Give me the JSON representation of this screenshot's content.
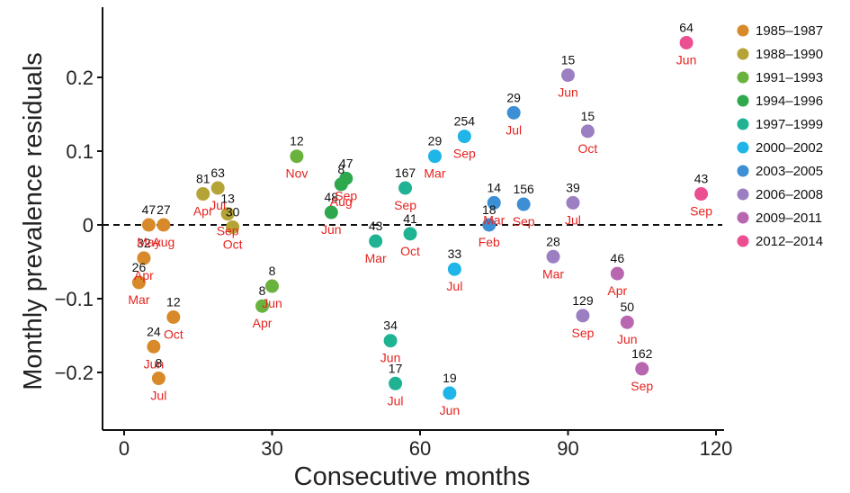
{
  "chart_data": {
    "type": "scatter",
    "xlabel": "Consecutive months",
    "ylabel": "Monthly prevalence residuals",
    "xlim": [
      -4,
      120
    ],
    "ylim": [
      -0.26,
      0.27
    ],
    "xticks": [
      0,
      30,
      60,
      90,
      120
    ],
    "yticks": [
      0.2,
      0.1,
      0,
      -0.1,
      -0.2
    ],
    "ytick_labels": [
      "0.2",
      "0.1",
      "0",
      "−0.1",
      "−0.2"
    ],
    "reference_line_y": 0,
    "legend_position": "right",
    "series": [
      {
        "name": "1985–1987",
        "color": "#d8892a",
        "points": [
          {
            "x": 3,
            "y": -0.078,
            "n": "26",
            "month": "Mar"
          },
          {
            "x": 4,
            "y": -0.045,
            "n": "32",
            "month": "Apr"
          },
          {
            "x": 5,
            "y": 0.0,
            "n": "47",
            "month": "May"
          },
          {
            "x": 6,
            "y": -0.165,
            "n": "24",
            "month": "Jun"
          },
          {
            "x": 7,
            "y": -0.208,
            "n": "8",
            "month": "Jul"
          },
          {
            "x": 8,
            "y": 0.0,
            "n": "27",
            "month": "Aug"
          },
          {
            "x": 10,
            "y": -0.125,
            "n": "12",
            "month": "Oct"
          }
        ]
      },
      {
        "name": "1988–1990",
        "color": "#b5a335",
        "points": [
          {
            "x": 16,
            "y": 0.042,
            "n": "81",
            "month": "Apr"
          },
          {
            "x": 19,
            "y": 0.05,
            "n": "63",
            "month": "Jul"
          },
          {
            "x": 21,
            "y": 0.015,
            "n": "13",
            "month": "Sep"
          },
          {
            "x": 22,
            "y": -0.003,
            "n": "30",
            "month": "Oct"
          }
        ]
      },
      {
        "name": "1991–1993",
        "color": "#6ab23e",
        "points": [
          {
            "x": 28,
            "y": -0.11,
            "n": "8",
            "month": "Apr"
          },
          {
            "x": 30,
            "y": -0.083,
            "n": "8",
            "month": "Jun"
          },
          {
            "x": 35,
            "y": 0.093,
            "n": "12",
            "month": "Nov"
          }
        ]
      },
      {
        "name": "1994–1996",
        "color": "#2ea84d",
        "points": [
          {
            "x": 42,
            "y": 0.017,
            "n": "48",
            "month": "Jun"
          },
          {
            "x": 44,
            "y": 0.055,
            "n": "8",
            "month": "Aug"
          },
          {
            "x": 45,
            "y": 0.063,
            "n": "47",
            "month": "Sep"
          }
        ]
      },
      {
        "name": "1997–1999",
        "color": "#1fb394",
        "points": [
          {
            "x": 51,
            "y": -0.022,
            "n": "43",
            "month": "Mar"
          },
          {
            "x": 54,
            "y": -0.157,
            "n": "34",
            "month": "Jun"
          },
          {
            "x": 55,
            "y": -0.215,
            "n": "17",
            "month": "Jul"
          },
          {
            "x": 57,
            "y": 0.05,
            "n": "167",
            "month": "Sep"
          },
          {
            "x": 58,
            "y": -0.012,
            "n": "41",
            "month": "Oct"
          }
        ]
      },
      {
        "name": "2000–2002",
        "color": "#1fb5e8",
        "points": [
          {
            "x": 63,
            "y": 0.093,
            "n": "29",
            "month": "Mar"
          },
          {
            "x": 66,
            "y": -0.228,
            "n": "19",
            "month": "Jun"
          },
          {
            "x": 67,
            "y": -0.06,
            "n": "33",
            "month": "Jul"
          },
          {
            "x": 69,
            "y": 0.12,
            "n": "254",
            "month": "Sep"
          }
        ]
      },
      {
        "name": "2003–2005",
        "color": "#3c8fd4",
        "points": [
          {
            "x": 74,
            "y": 0.0,
            "n": "18",
            "month": "Feb"
          },
          {
            "x": 75,
            "y": 0.03,
            "n": "14",
            "month": "Mar"
          },
          {
            "x": 79,
            "y": 0.152,
            "n": "29",
            "month": "Jul"
          },
          {
            "x": 81,
            "y": 0.028,
            "n": "156",
            "month": "Sep"
          }
        ]
      },
      {
        "name": "2006–2008",
        "color": "#9b7fc2",
        "points": [
          {
            "x": 87,
            "y": -0.043,
            "n": "28",
            "month": "Mar"
          },
          {
            "x": 90,
            "y": 0.203,
            "n": "15",
            "month": "Jun"
          },
          {
            "x": 91,
            "y": 0.03,
            "n": "39",
            "month": "Jul"
          },
          {
            "x": 93,
            "y": -0.123,
            "n": "129",
            "month": "Sep"
          },
          {
            "x": 94,
            "y": 0.127,
            "n": "15",
            "month": "Oct"
          }
        ]
      },
      {
        "name": "2009–2011",
        "color": "#b866b0",
        "points": [
          {
            "x": 100,
            "y": -0.066,
            "n": "46",
            "month": "Apr"
          },
          {
            "x": 102,
            "y": -0.132,
            "n": "50",
            "month": "Jun"
          },
          {
            "x": 105,
            "y": -0.195,
            "n": "162",
            "month": "Sep"
          }
        ]
      },
      {
        "name": "2012–2014",
        "color": "#eb4f92",
        "points": [
          {
            "x": 114,
            "y": 0.247,
            "n": "64",
            "month": "Jun"
          },
          {
            "x": 117,
            "y": 0.042,
            "n": "43",
            "month": "Sep"
          }
        ]
      }
    ]
  }
}
